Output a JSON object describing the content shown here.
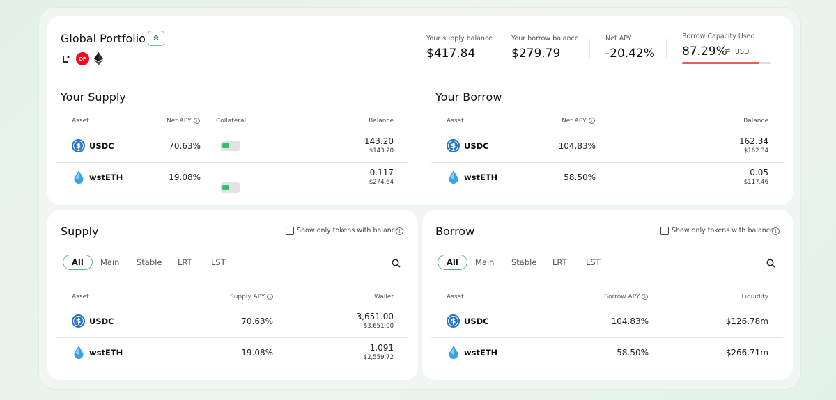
{
  "portfolio": {
    "title": "Global Portfolio",
    "collapse_icon": "chevron-double-up",
    "chain_icons": [
      "linea-icon",
      "optimism-icon",
      "ethereum-icon"
    ],
    "op_badge": "OP",
    "supply_balance": {
      "label": "Your supply balance",
      "value": "$417.84"
    },
    "borrow_balance": {
      "label": "Your borrow balance",
      "value": "$279.79"
    },
    "net_apy": {
      "label": "Net APY",
      "value": "-20.42%"
    },
    "borrow_capacity": {
      "label": "Borrow Capacity Used",
      "value": "87.29%",
      "currency": "USD",
      "progress": 0.8729,
      "bar_color": "#e06060"
    }
  },
  "your_supply": {
    "title": "Your Supply",
    "headers": {
      "asset": "Asset",
      "net_apy": "Net APY",
      "collateral": "Collateral",
      "balance": "Balance"
    },
    "rows": [
      {
        "asset": "USDC",
        "apy": "70.63%",
        "collateral": true,
        "balance": "143.20",
        "balance_usd": "$143.20"
      },
      {
        "asset": "wstETH",
        "apy": "19.08%",
        "collateral": true,
        "balance": "0.117",
        "balance_usd": "$274.64"
      }
    ]
  },
  "your_borrow": {
    "title": "Your Borrow",
    "headers": {
      "asset": "Asset",
      "net_apy": "Net APY",
      "balance": "Balance"
    },
    "rows": [
      {
        "asset": "USDC",
        "apy": "104.83%",
        "balance": "162.34",
        "balance_usd": "$162.34"
      },
      {
        "asset": "wstETH",
        "apy": "58.50%",
        "balance": "0.05",
        "balance_usd": "$117.46"
      }
    ]
  },
  "supply_market": {
    "title": "Supply",
    "filter_label": "Show only tokens with balance",
    "tabs": [
      "All",
      "Main",
      "Stable",
      "LRT",
      "LST"
    ],
    "active_tab": "All",
    "headers": {
      "asset": "Asset",
      "apy": "Supply APY",
      "wallet": "Wallet"
    },
    "rows": [
      {
        "asset": "USDC",
        "apy": "70.63%",
        "wallet": "3,651.00",
        "wallet_usd": "$3,651.00"
      },
      {
        "asset": "wstETH",
        "apy": "19.08%",
        "wallet": "1.091",
        "wallet_usd": "$2,559.72"
      }
    ]
  },
  "borrow_market": {
    "title": "Borrow",
    "filter_label": "Show only tokens with balance",
    "tabs": [
      "All",
      "Main",
      "Stable",
      "LRT",
      "LST"
    ],
    "active_tab": "All",
    "headers": {
      "asset": "Asset",
      "apy": "Borrow APY",
      "liquidity": "Liquidity"
    },
    "rows": [
      {
        "asset": "USDC",
        "apy": "104.83%",
        "liquidity": "$126.78m"
      },
      {
        "asset": "wstETH",
        "apy": "58.50%",
        "liquidity": "$266.71m"
      }
    ]
  },
  "colors": {
    "accent": "#58b683",
    "usdc": "#2775ca",
    "wsteth": "#3aa3e8",
    "toggle_on": "#2fc06a",
    "op_red": "#ff0420"
  }
}
